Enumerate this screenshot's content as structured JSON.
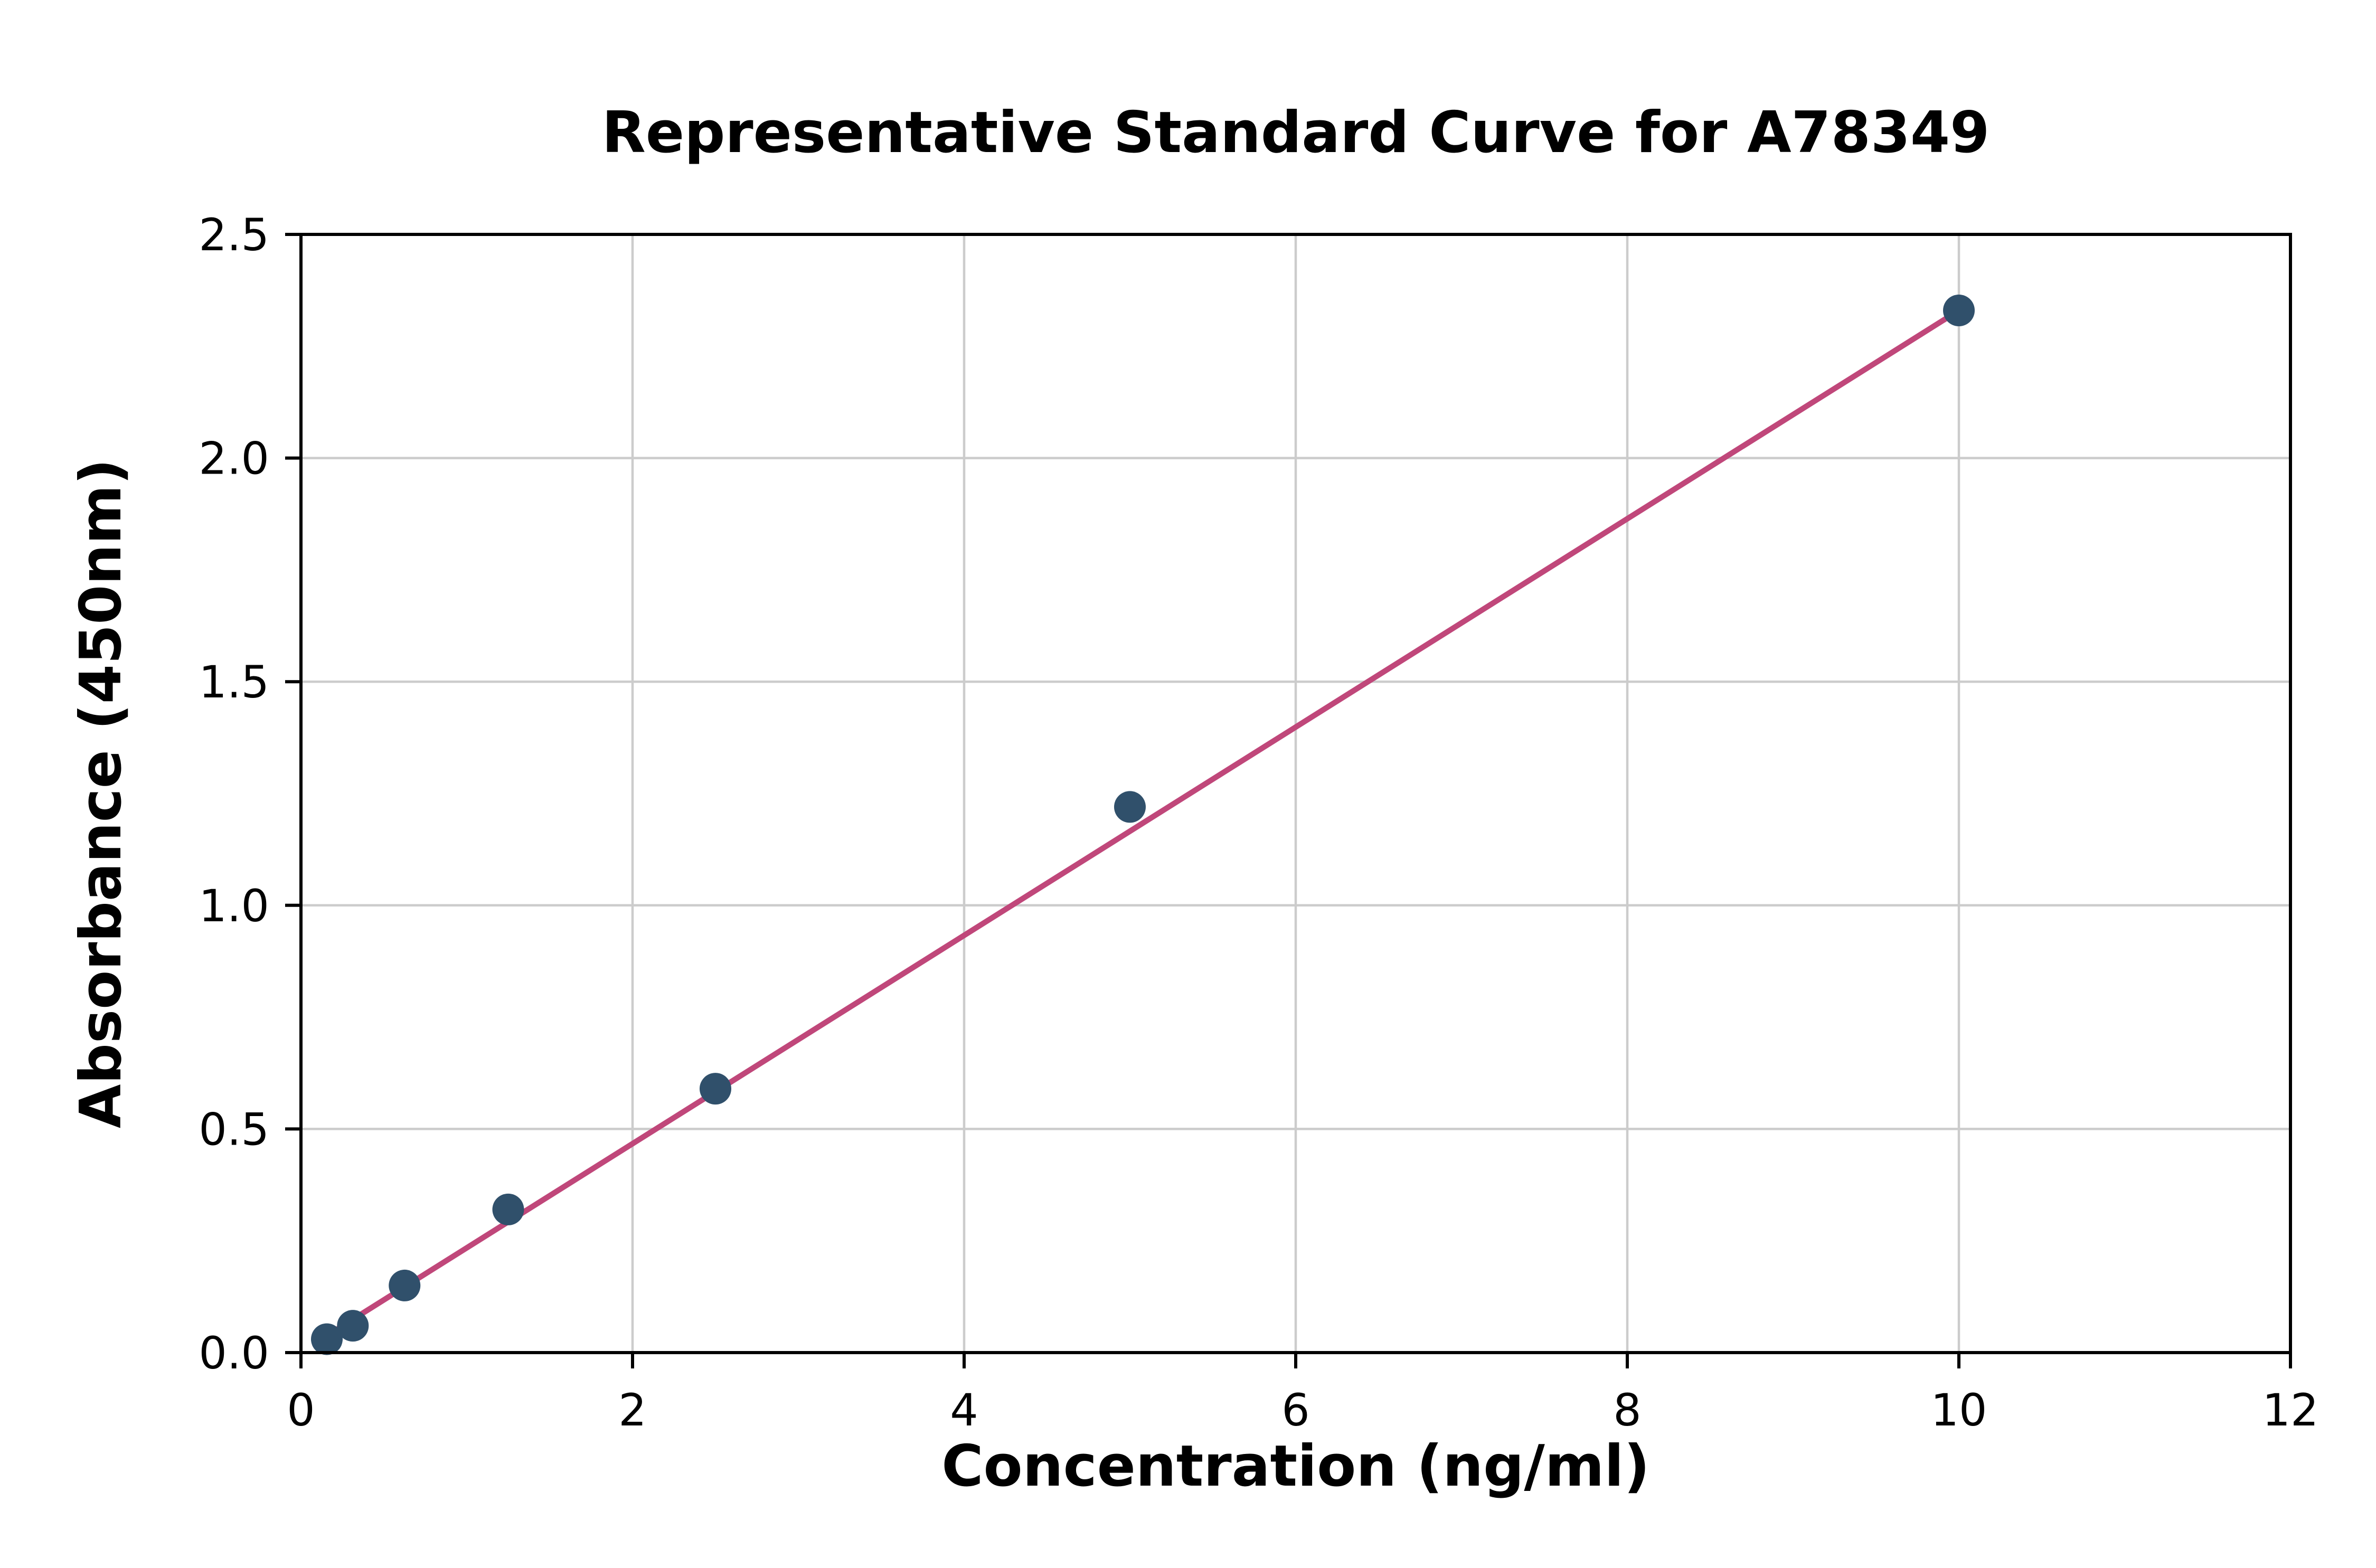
{
  "chart_data": {
    "type": "scatter",
    "title": "Representative Standard Curve for A78349",
    "xlabel": "Concentration (ng/ml)",
    "ylabel": "Absorbance (450nm)",
    "xlim": [
      0,
      12
    ],
    "ylim": [
      0,
      2.5
    ],
    "grid": true,
    "legend": "none",
    "xticks": {
      "values": [
        0,
        2,
        4,
        6,
        8,
        10,
        12
      ],
      "labels": [
        "0",
        "2",
        "4",
        "6",
        "8",
        "10",
        "12"
      ]
    },
    "yticks": {
      "values": [
        0,
        0.5,
        1.0,
        1.5,
        2.0,
        2.5
      ],
      "labels": [
        "0.0",
        "0.5",
        "1.0",
        "1.5",
        "2.0",
        "2.5"
      ]
    },
    "series": [
      {
        "name": "data-points",
        "type": "scatter",
        "x": [
          0.156,
          0.313,
          0.625,
          1.25,
          2.5,
          5,
          10
        ],
        "y": [
          0.03,
          0.06,
          0.15,
          0.32,
          0.59,
          1.22,
          2.33
        ]
      },
      {
        "name": "linear-fit",
        "type": "line",
        "x": [
          0.08,
          10.0
        ],
        "y": [
          0.02,
          2.33
        ]
      }
    ],
    "colors": {
      "points": "#30506b",
      "line": "#c0477a",
      "grid": "#cccccc",
      "frame": "#000000",
      "text": "#000000",
      "background": "#ffffff"
    }
  }
}
